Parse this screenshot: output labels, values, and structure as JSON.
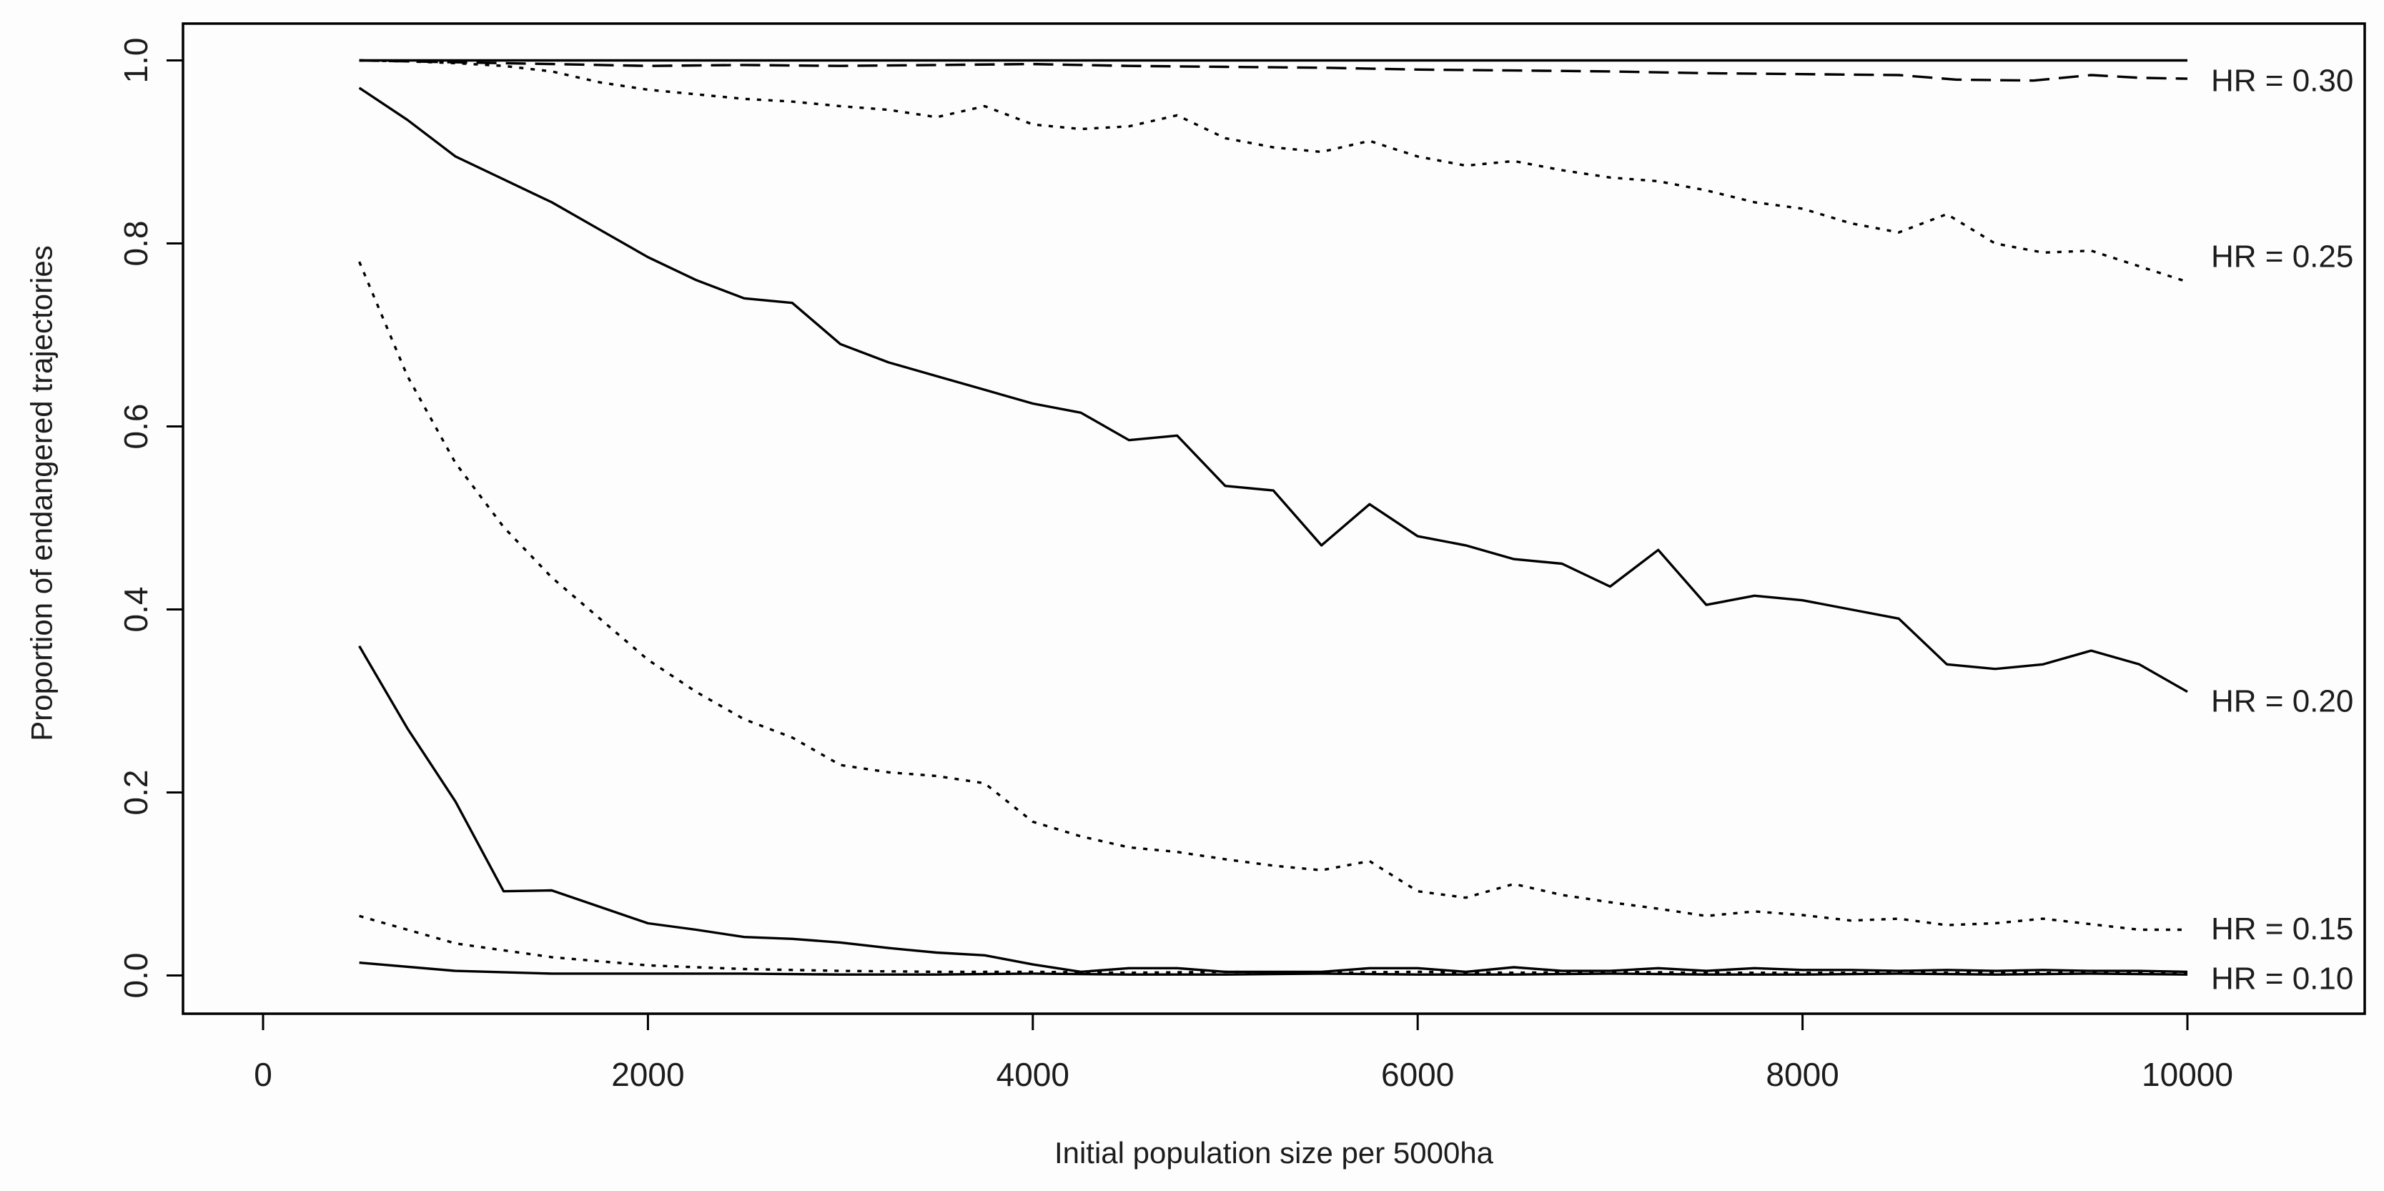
{
  "figure": {
    "background": "#fdfdfd",
    "line_color": "#000000",
    "text_color": "#1c1c1c"
  },
  "chart_data": {
    "type": "line",
    "title": "",
    "xlabel": "Initial population size per 5000ha",
    "ylabel": "Proportion of endangered trajectories",
    "xlim": [
      -430,
      10900
    ],
    "ylim": [
      -0.043,
      1.04
    ],
    "grid": false,
    "legend_position": "right-inline-labels",
    "x_ticks": [
      0,
      2000,
      4000,
      6000,
      8000,
      10000
    ],
    "x_tick_labels": [
      "0",
      "2000",
      "4000",
      "6000",
      "8000",
      "10000"
    ],
    "y_ticks": [
      0.0,
      0.2,
      0.4,
      0.6,
      0.8,
      1.0
    ],
    "y_tick_labels": [
      "0.0",
      "0.2",
      "0.4",
      "0.6",
      "0.8",
      "1.0"
    ],
    "series": [
      {
        "name": "hr-0.30-solid",
        "style": "solid",
        "x": [
          500,
          10000
        ],
        "y": [
          1.0,
          1.0
        ]
      },
      {
        "name": "hr-0.30-dashed",
        "style": "dashed",
        "x": [
          500,
          1000,
          1500,
          2000,
          2500,
          3000,
          3500,
          4000,
          4500,
          5000,
          5500,
          6000,
          6500,
          7000,
          7500,
          8000,
          8500,
          8800,
          9200,
          9500,
          9750,
          10000
        ],
        "y": [
          1.0,
          0.998,
          0.996,
          0.994,
          0.995,
          0.994,
          0.995,
          0.996,
          0.994,
          0.993,
          0.992,
          0.99,
          0.989,
          0.988,
          0.986,
          0.985,
          0.984,
          0.979,
          0.978,
          0.984,
          0.981,
          0.98
        ]
      },
      {
        "name": "hr-0.25-dotted",
        "style": "dotted",
        "x": [
          500,
          750,
          1000,
          1250,
          1500,
          1750,
          2000,
          2250,
          2500,
          2750,
          3000,
          3250,
          3500,
          3750,
          4000,
          4250,
          4500,
          4750,
          5000,
          5250,
          5500,
          5750,
          6000,
          6250,
          6500,
          6750,
          7000,
          7250,
          7500,
          7750,
          8000,
          8250,
          8500,
          8750,
          9000,
          9250,
          9500,
          9750,
          10000
        ],
        "y": [
          1.0,
          0.999,
          0.997,
          0.994,
          0.988,
          0.976,
          0.968,
          0.963,
          0.958,
          0.955,
          0.95,
          0.946,
          0.938,
          0.95,
          0.93,
          0.925,
          0.928,
          0.94,
          0.915,
          0.905,
          0.9,
          0.912,
          0.895,
          0.885,
          0.89,
          0.88,
          0.872,
          0.868,
          0.858,
          0.845,
          0.838,
          0.822,
          0.812,
          0.832,
          0.8,
          0.79,
          0.792,
          0.775,
          0.758
        ]
      },
      {
        "name": "hr-0.20-solid",
        "style": "solid",
        "x": [
          500,
          750,
          1000,
          1250,
          1500,
          1750,
          2000,
          2250,
          2500,
          2750,
          3000,
          3250,
          3500,
          3750,
          4000,
          4250,
          4500,
          4750,
          5000,
          5250,
          5500,
          5750,
          6000,
          6250,
          6500,
          6750,
          7000,
          7250,
          7500,
          7750,
          8000,
          8250,
          8500,
          8750,
          9000,
          9250,
          9500,
          9750,
          10000
        ],
        "y": [
          0.97,
          0.935,
          0.895,
          0.87,
          0.845,
          0.815,
          0.785,
          0.76,
          0.74,
          0.735,
          0.69,
          0.67,
          0.655,
          0.64,
          0.625,
          0.615,
          0.585,
          0.59,
          0.535,
          0.53,
          0.47,
          0.515,
          0.48,
          0.47,
          0.455,
          0.45,
          0.425,
          0.465,
          0.405,
          0.415,
          0.41,
          0.4,
          0.39,
          0.34,
          0.335,
          0.34,
          0.355,
          0.34,
          0.31
        ]
      },
      {
        "name": "hr-0.15-dotted",
        "style": "dotted",
        "x": [
          500,
          750,
          1000,
          1250,
          1500,
          1750,
          2000,
          2250,
          2500,
          2750,
          3000,
          3250,
          3500,
          3750,
          4000,
          4250,
          4500,
          4750,
          5000,
          5250,
          5500,
          5750,
          6000,
          6250,
          6500,
          6750,
          7000,
          7250,
          7500,
          7750,
          8000,
          8250,
          8500,
          8750,
          9000,
          9250,
          9500,
          9750,
          10000
        ],
        "y": [
          0.78,
          0.655,
          0.56,
          0.49,
          0.435,
          0.39,
          0.345,
          0.31,
          0.28,
          0.26,
          0.23,
          0.222,
          0.218,
          0.21,
          0.168,
          0.152,
          0.14,
          0.135,
          0.127,
          0.12,
          0.115,
          0.125,
          0.092,
          0.085,
          0.1,
          0.088,
          0.08,
          0.073,
          0.065,
          0.07,
          0.066,
          0.06,
          0.062,
          0.055,
          0.057,
          0.062,
          0.056,
          0.05,
          0.05
        ]
      },
      {
        "name": "unlabeled-solid-steep",
        "style": "solid",
        "x": [
          500,
          750,
          1000,
          1250,
          1500,
          1750,
          2000,
          2250,
          2500,
          2750,
          3000,
          3250,
          3500,
          3750,
          4000,
          4250,
          4500,
          4750,
          5000,
          5250,
          5500,
          5750,
          6000,
          6250,
          6500,
          6750,
          7000,
          7250,
          7500,
          7750,
          8000,
          8250,
          8500,
          8750,
          9000,
          9250,
          9500,
          9750,
          10000
        ],
        "y": [
          0.36,
          0.27,
          0.19,
          0.092,
          0.093,
          0.075,
          0.057,
          0.05,
          0.042,
          0.04,
          0.036,
          0.03,
          0.025,
          0.022,
          0.012,
          0.004,
          0.008,
          0.008,
          0.004,
          0.004,
          0.004,
          0.008,
          0.008,
          0.004,
          0.009,
          0.005,
          0.005,
          0.008,
          0.005,
          0.008,
          0.006,
          0.006,
          0.005,
          0.006,
          0.005,
          0.006,
          0.005,
          0.005,
          0.004
        ]
      },
      {
        "name": "unlabeled-dotted-low",
        "style": "dotted",
        "x": [
          500,
          1000,
          1500,
          2000,
          2500,
          3000,
          3500,
          4000,
          4500,
          5000,
          5500,
          6000,
          6500,
          7000,
          7500,
          8000,
          8500,
          9000,
          9500,
          10000
        ],
        "y": [
          0.065,
          0.035,
          0.02,
          0.011,
          0.007,
          0.005,
          0.004,
          0.004,
          0.003,
          0.004,
          0.003,
          0.004,
          0.003,
          0.004,
          0.003,
          0.003,
          0.003,
          0.003,
          0.003,
          0.003
        ]
      },
      {
        "name": "hr-0.10-solid",
        "style": "solid",
        "x": [
          500,
          1000,
          1500,
          2000,
          2500,
          3000,
          3500,
          4000,
          4500,
          5000,
          5500,
          6000,
          6500,
          7000,
          7500,
          8000,
          8500,
          9000,
          9500,
          10000
        ],
        "y": [
          0.014,
          0.005,
          0.002,
          0.002,
          0.002,
          0.001,
          0.001,
          0.002,
          0.001,
          0.001,
          0.002,
          0.001,
          0.001,
          0.002,
          0.001,
          0.001,
          0.002,
          0.001,
          0.002,
          0.001
        ]
      }
    ],
    "annotations": [
      {
        "text": "HR = 0.30",
        "y": 0.978
      },
      {
        "text": "HR = 0.25",
        "y": 0.786
      },
      {
        "text": "HR = 0.20",
        "y": 0.3
      },
      {
        "text": "HR = 0.15",
        "y": 0.051
      },
      {
        "text": "HR = 0.10",
        "y": -0.003
      }
    ]
  }
}
